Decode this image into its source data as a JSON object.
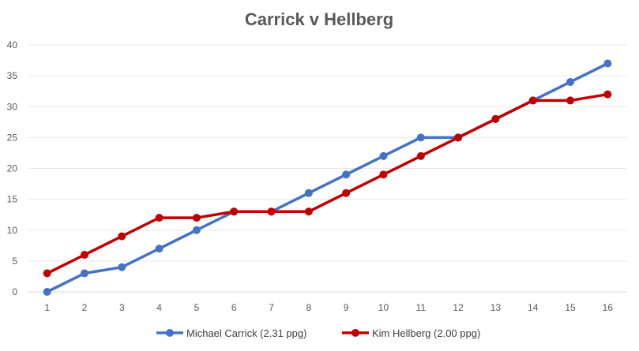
{
  "chart_data": {
    "type": "line",
    "title": "Carrick v Hellberg",
    "xlabel": "",
    "ylabel": "",
    "categories": [
      "1",
      "2",
      "3",
      "4",
      "5",
      "6",
      "7",
      "8",
      "9",
      "10",
      "11",
      "12",
      "13",
      "14",
      "15",
      "16"
    ],
    "ylim": [
      0,
      40
    ],
    "yticks": [
      "0",
      "5",
      "10",
      "15",
      "20",
      "25",
      "30",
      "35",
      "40"
    ],
    "grid": true,
    "legend_position": "bottom",
    "series": [
      {
        "name": "Michael Carrick (2.31 ppg)",
        "color": "#4472C4",
        "values": [
          0,
          3,
          4,
          7,
          10,
          13,
          13,
          16,
          19,
          22,
          25,
          25,
          28,
          31,
          34,
          37
        ]
      },
      {
        "name": "Kim Hellberg (2.00 ppg)",
        "color": "#C00000",
        "values": [
          3,
          6,
          9,
          12,
          12,
          13,
          13,
          13,
          16,
          19,
          22,
          25,
          28,
          31,
          31,
          32
        ]
      }
    ]
  }
}
